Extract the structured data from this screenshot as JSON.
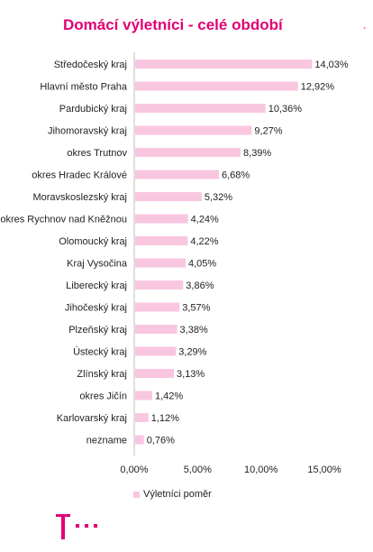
{
  "title": "Domácí výletníci - celé období",
  "corner_mark": "´",
  "colors": {
    "accent": "#e20074",
    "bar": "#f9c6e0",
    "axis": "#bfbfbf"
  },
  "chart_data": {
    "type": "bar",
    "orientation": "horizontal",
    "categories": [
      "Středočeský kraj",
      "Hlavní město Praha",
      "Pardubický kraj",
      "Jihomoravský kraj",
      "okres Trutnov",
      "okres Hradec Králové",
      "Moravskoslezský kraj",
      "okres Rychnov nad Kněžnou",
      "Olomoucký kraj",
      "Kraj Vysočina",
      "Liberecký kraj",
      "Jihočeský kraj",
      "Plzeňský kraj",
      "Ústecký kraj",
      "Zlínský kraj",
      "okres Jičín",
      "Karlovarský kraj",
      "nezname"
    ],
    "series": [
      {
        "name": "Výletníci poměr",
        "values": [
          14.03,
          12.92,
          10.36,
          9.27,
          8.39,
          6.68,
          5.32,
          4.24,
          4.22,
          4.05,
          3.86,
          3.57,
          3.38,
          3.29,
          3.13,
          1.42,
          1.12,
          0.76
        ],
        "value_labels": [
          "14,03%",
          "12,92%",
          "10,36%",
          "9,27%",
          "8,39%",
          "6,68%",
          "5,32%",
          "4,24%",
          "4,22%",
          "4,05%",
          "3,86%",
          "3,57%",
          "3,38%",
          "3,29%",
          "3,13%",
          "1,42%",
          "1,12%",
          "0,76%"
        ]
      }
    ],
    "xlim": [
      0,
      15
    ],
    "x_ticks": [
      0,
      5,
      10,
      15
    ],
    "x_tick_labels": [
      "0,00%",
      "5,00%",
      "10,00%",
      "15,00%"
    ],
    "grid": false,
    "legend_position": "bottom"
  }
}
